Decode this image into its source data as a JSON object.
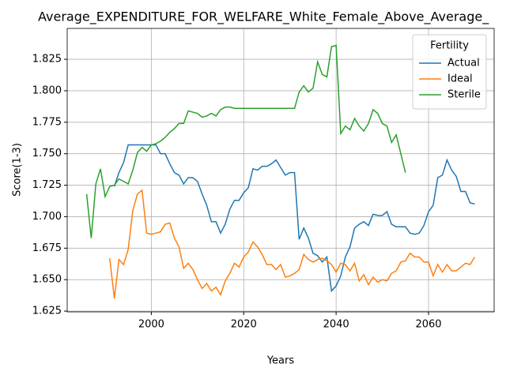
{
  "chart_data": {
    "type": "line",
    "title": "Average_EXPENDITURE_FOR_WELFARE_White_Female_Above_Average_",
    "xlabel": "Years",
    "ylabel": "Score(1-3)",
    "legend_title": "Fertility",
    "legend_loc": "upper right",
    "grid": true,
    "xlim": [
      1981.8,
      2074.2
    ],
    "xticks": [
      2000,
      2020,
      2040,
      2060
    ],
    "ylim": [
      1.6244,
      1.8495
    ],
    "yticks": [
      1.625,
      {
        "value": 1.65,
        "label": "1.650"
      },
      1.675,
      {
        "value": 1.7,
        "label": "1.700"
      },
      1.725,
      {
        "value": 1.75,
        "label": "1.750"
      },
      1.775,
      {
        "value": 1.8,
        "label": "1.800"
      },
      1.825
    ],
    "x": [
      1986,
      1987,
      1988,
      1989,
      1990,
      1991,
      1992,
      1993,
      1994,
      1995,
      1996,
      1997,
      1998,
      1999,
      2000,
      2001,
      2002,
      2003,
      2004,
      2005,
      2006,
      2007,
      2008,
      2009,
      2010,
      2011,
      2012,
      2013,
      2014,
      2015,
      2016,
      2017,
      2018,
      2019,
      2020,
      2021,
      2022,
      2023,
      2024,
      2025,
      2026,
      2027,
      2028,
      2029,
      2030,
      2031,
      2032,
      2033,
      2034,
      2035,
      2036,
      2037,
      2038,
      2039,
      2040,
      2041,
      2042,
      2043,
      2044,
      2045,
      2046,
      2047,
      2048,
      2049,
      2050,
      2051,
      2052,
      2053,
      2054,
      2055,
      2056,
      2057,
      2058,
      2059,
      2060,
      2061,
      2062,
      2063,
      2064,
      2065,
      2066,
      2067,
      2068,
      2069,
      2070
    ],
    "series": [
      {
        "name": "Actual",
        "color": "#1f77b4",
        "values": [
          null,
          null,
          null,
          null,
          null,
          null,
          1.724,
          1.735,
          1.743,
          1.757,
          1.757,
          1.757,
          1.757,
          1.757,
          1.757,
          1.757,
          1.75,
          1.75,
          1.742,
          1.735,
          1.733,
          1.726,
          1.731,
          1.731,
          1.728,
          1.718,
          1.709,
          1.696,
          1.696,
          1.687,
          1.694,
          1.706,
          1.713,
          1.713,
          1.719,
          1.723,
          1.738,
          1.737,
          1.74,
          1.74,
          1.742,
          1.745,
          1.739,
          1.733,
          1.735,
          1.735,
          1.682,
          1.691,
          1.683,
          1.671,
          1.669,
          1.664,
          1.668,
          1.641,
          1.645,
          1.653,
          1.668,
          1.676,
          1.691,
          1.694,
          1.696,
          1.693,
          1.702,
          1.701,
          1.701,
          1.704,
          1.694,
          1.692,
          1.692,
          1.692,
          1.687,
          1.686,
          1.687,
          1.693,
          1.704,
          1.709,
          1.731,
          1.733,
          1.745,
          1.737,
          1.732,
          1.72,
          1.72,
          1.711,
          1.71
        ]
      },
      {
        "name": "Ideal",
        "color": "#ff7f0e",
        "values": [
          null,
          null,
          null,
          null,
          null,
          1.667,
          1.635,
          1.666,
          1.662,
          1.674,
          1.705,
          1.718,
          1.721,
          1.687,
          1.686,
          1.687,
          1.688,
          1.694,
          1.695,
          1.683,
          1.676,
          1.659,
          1.663,
          1.658,
          1.65,
          1.643,
          1.647,
          1.641,
          1.644,
          1.638,
          1.649,
          1.655,
          1.663,
          1.66,
          1.668,
          1.672,
          1.68,
          1.676,
          1.67,
          1.662,
          1.662,
          1.658,
          1.662,
          1.652,
          1.653,
          1.655,
          1.658,
          1.67,
          1.666,
          1.664,
          1.666,
          1.667,
          1.665,
          1.662,
          1.656,
          1.663,
          1.662,
          1.657,
          1.663,
          1.649,
          1.654,
          1.646,
          1.652,
          1.648,
          1.65,
          1.649,
          1.655,
          1.657,
          1.664,
          1.665,
          1.671,
          1.668,
          1.668,
          1.664,
          1.664,
          1.653,
          1.662,
          1.656,
          1.662,
          1.657,
          1.657,
          1.66,
          1.663,
          1.662,
          1.668
        ]
      },
      {
        "name": "Sterile",
        "color": "#2ca02c",
        "values": [
          1.718,
          1.683,
          1.726,
          1.738,
          1.716,
          1.724,
          1.725,
          1.73,
          1.728,
          1.726,
          1.737,
          1.751,
          1.755,
          1.752,
          1.757,
          1.758,
          1.76,
          1.763,
          1.767,
          1.77,
          1.774,
          1.774,
          1.784,
          1.783,
          1.782,
          1.779,
          1.78,
          1.782,
          1.78,
          1.785,
          1.787,
          1.787,
          1.786,
          1.786,
          1.786,
          1.786,
          1.786,
          1.786,
          1.786,
          1.786,
          1.786,
          1.786,
          1.786,
          1.786,
          1.786,
          1.786,
          1.799,
          1.804,
          1.799,
          1.802,
          1.823,
          1.813,
          1.811,
          1.835,
          1.836,
          1.766,
          1.772,
          1.769,
          1.778,
          1.772,
          1.768,
          1.774,
          1.785,
          1.782,
          1.774,
          1.772,
          1.759,
          1.765,
          1.75,
          1.735,
          null,
          null,
          null,
          null,
          null,
          null,
          null,
          null,
          null,
          null,
          null,
          null,
          null,
          null,
          null
        ]
      }
    ]
  }
}
